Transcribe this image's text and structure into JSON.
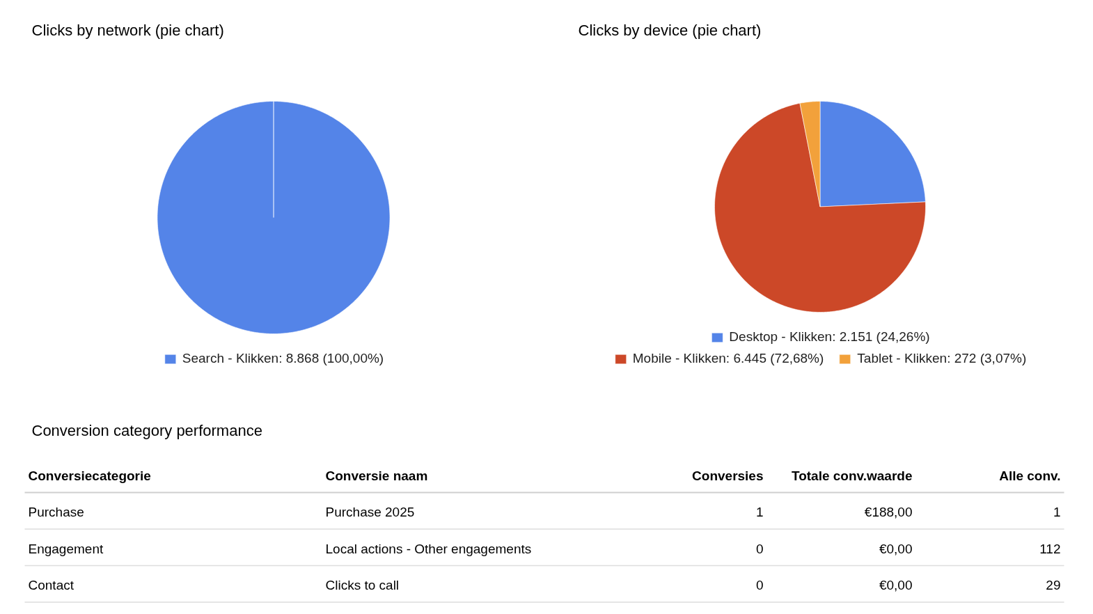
{
  "chart_data": [
    {
      "type": "pie",
      "title": "Clicks by network (pie chart)",
      "categories": [
        "Search - Klikken: 8.868 (100,00%)"
      ],
      "values": [
        8868
      ],
      "colors": [
        "#5484e8"
      ],
      "legend": "bottom"
    },
    {
      "type": "pie",
      "title": "Clicks by device (pie chart)",
      "categories": [
        "Desktop - Klikken: 2.151 (24,26%)",
        "Mobile - Klikken: 6.445 (72,68%)",
        "Tablet - Klikken: 272 (3,07%)"
      ],
      "values": [
        2151,
        6445,
        272
      ],
      "colors": [
        "#5484e8",
        "#cc4828",
        "#f2a13b"
      ],
      "legend": "bottom"
    },
    {
      "type": "other",
      "title": "Conversion category performance",
      "categories": [
        "Conversiecategorie",
        "Conversie naam",
        "Conversies",
        "Totale conv.waarde",
        "Alle conv."
      ],
      "annotations": [
        "Purchase",
        "Purchase 2025",
        "1",
        "€188,00",
        "1",
        "Engagement",
        "Local actions - Other engagements",
        "0",
        "€0,00",
        "112",
        "Contact",
        "Clicks to call",
        "0",
        "€0,00",
        "29"
      ]
    }
  ]
}
